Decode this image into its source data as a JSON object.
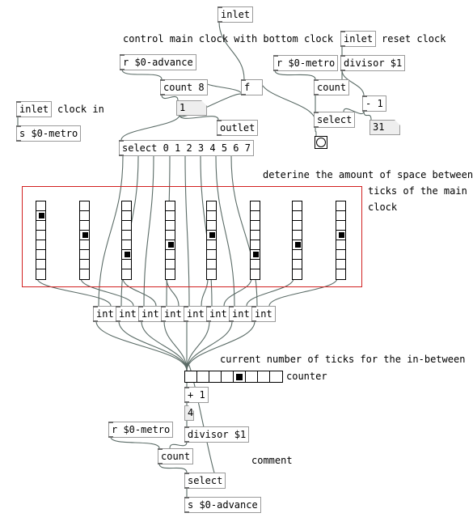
{
  "comments": {
    "control_main_clock": "control main clock with bottom clock",
    "reset_clock": "reset clock",
    "clock_in": "clock in",
    "determine_line1": "deterine the amount of space between",
    "determine_line2": "ticks of the main",
    "determine_line3": "clock",
    "current_ticks": "current number of ticks for the in-between",
    "counter": "counter",
    "comment": "comment"
  },
  "objects": {
    "inlet_top": "inlet",
    "inlet_reset": "inlet",
    "r_advance": "r $0-advance",
    "r_metro_top": "r $0-metro",
    "divisor_top": "divisor $1",
    "count8": "count 8",
    "f_obj": "f",
    "count_top": "count",
    "minus1": "- 1",
    "select_top": "select",
    "inlet_clock": "inlet",
    "s_metro": "s $0-metro",
    "outlet": "outlet",
    "select_main": "select 0 1 2 3 4 5 6 7",
    "int_label": "int",
    "plus1": "+ 1",
    "r_metro_bottom": "r $0-metro",
    "divisor_bottom": "divisor $1",
    "count_bottom": "count",
    "select_bottom": "select",
    "s_advance": "s $0-advance"
  },
  "numbers": {
    "count8_out": "1",
    "minus1_out": "31",
    "plus1_out": "4"
  },
  "radios": {
    "vradio_selected": [
      1,
      3,
      5,
      4,
      3,
      5,
      4,
      3
    ],
    "vradio_cells": 8,
    "counter_selected": 4,
    "counter_cells": 8
  },
  "colors": {
    "wire": "#5a6b66",
    "box_border": "#9a9a9a",
    "group_border": "#d12020",
    "number_bg": "#eeeeee"
  }
}
